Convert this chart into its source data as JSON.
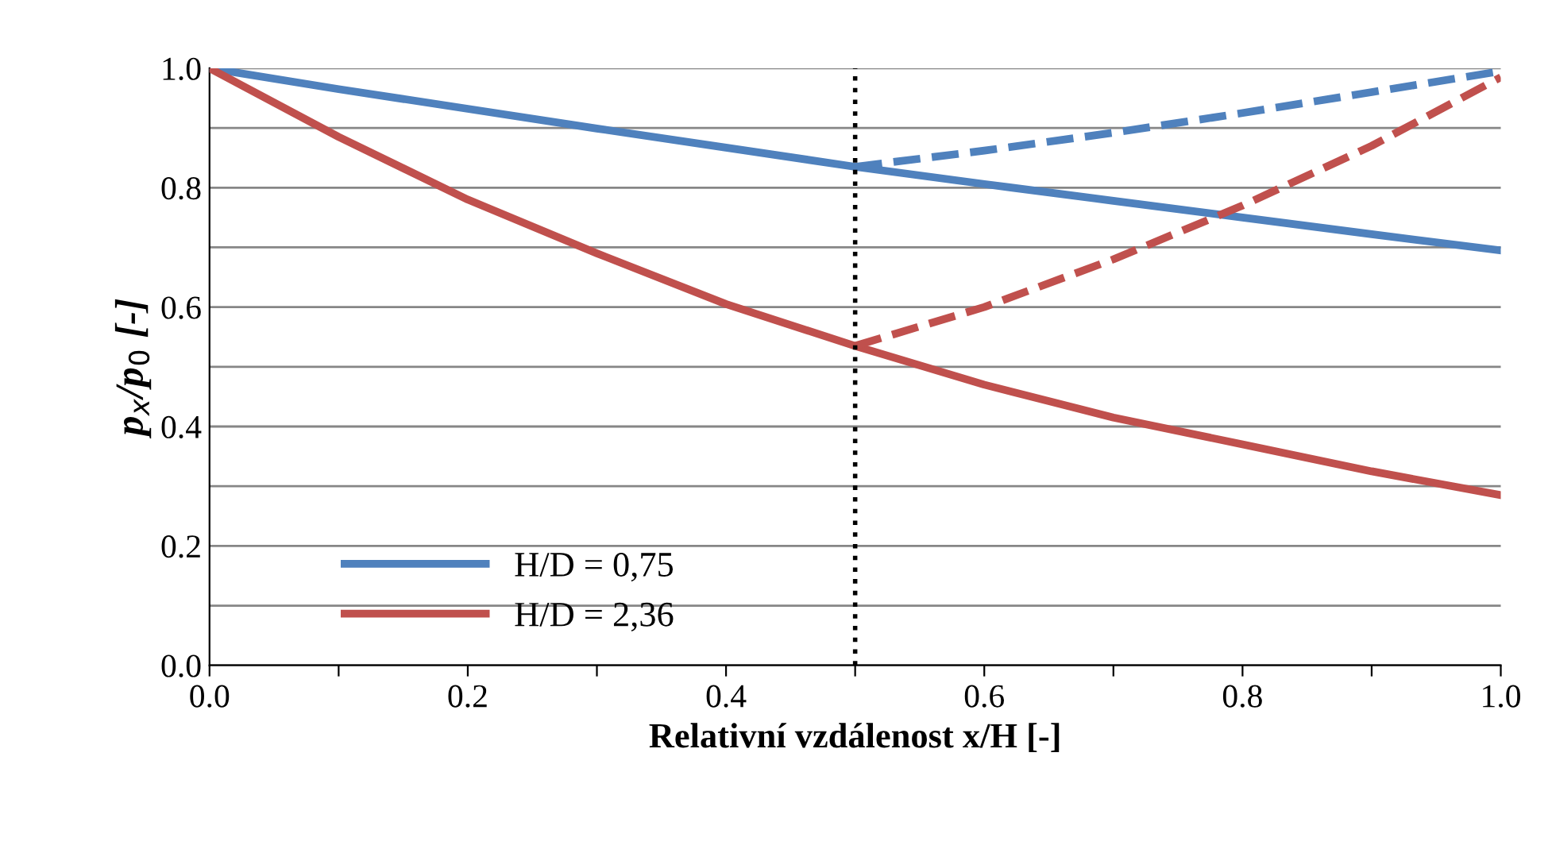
{
  "chart_data": {
    "type": "line",
    "xlabel": "Relativní vzdálenost x/H [-]",
    "ylabel": "p$_{x}$/p$_{0}$ [-]",
    "xlim": [
      0,
      1
    ],
    "ylim": [
      0,
      1
    ],
    "xticks": [
      {
        "value": 0,
        "label": "0.0"
      },
      {
        "value": 0.1,
        "label": null
      },
      {
        "value": 0.2,
        "label": "0.2"
      },
      {
        "value": 0.3,
        "label": null
      },
      {
        "value": 0.4,
        "label": "0.4"
      },
      {
        "value": 0.5,
        "label": null
      },
      {
        "value": 0.6,
        "label": "0.6"
      },
      {
        "value": 0.7,
        "label": null
      },
      {
        "value": 0.8,
        "label": "0.8"
      },
      {
        "value": 0.9,
        "label": null
      },
      {
        "value": 1,
        "label": "1.0"
      }
    ],
    "yticks": [
      {
        "value": 0,
        "label": "0.0"
      },
      {
        "value": 0.1,
        "label": null
      },
      {
        "value": 0.2,
        "label": "0.2"
      },
      {
        "value": 0.3,
        "label": null
      },
      {
        "value": 0.4,
        "label": "0.4"
      },
      {
        "value": 0.5,
        "label": null
      },
      {
        "value": 0.6,
        "label": "0.6"
      },
      {
        "value": 0.7,
        "label": null
      },
      {
        "value": 0.8,
        "label": "0.8"
      },
      {
        "value": 0.9,
        "label": null
      },
      {
        "value": 1,
        "label": "1.0"
      }
    ],
    "grid": "y",
    "legend": "bottom left",
    "marker": "none",
    "series": [
      {
        "name": "H/D = 0,75",
        "color": "#4f81bd",
        "line_style": "solid",
        "x": [
          0,
          0.1,
          0.2,
          0.3,
          0.4,
          0.5,
          0.6,
          0.7,
          0.8,
          0.9,
          1.0
        ],
        "values": [
          1.0,
          0.965,
          0.932,
          0.899,
          0.867,
          0.835,
          0.806,
          0.778,
          0.75,
          0.722,
          0.695
        ]
      },
      {
        "name": "H/D = 2,36",
        "color": "#c0504d",
        "line_style": "solid",
        "x": [
          0,
          0.1,
          0.2,
          0.3,
          0.4,
          0.5,
          0.6,
          0.7,
          0.8,
          0.9,
          1.0
        ],
        "values": [
          1.0,
          0.885,
          0.78,
          0.69,
          0.605,
          0.535,
          0.47,
          0.415,
          0.37,
          0.325,
          0.285
        ]
      },
      {
        "color": "#4f81bd",
        "line_style": "dashed",
        "x": [
          0.5,
          0.6,
          0.7,
          0.8,
          0.9,
          1.0
        ],
        "values": [
          0.835,
          0.862,
          0.892,
          0.925,
          0.96,
          0.995
        ]
      },
      {
        "color": "#c0504d",
        "line_style": "dashed",
        "x": [
          0.5,
          0.6,
          0.7,
          0.8,
          0.9,
          1.0
        ],
        "values": [
          0.535,
          0.6,
          0.68,
          0.77,
          0.87,
          0.985
        ]
      }
    ],
    "ref_lines": [
      {
        "axis": "x",
        "value": 0.5,
        "color": "#000000",
        "line_style": "dotted"
      }
    ]
  }
}
